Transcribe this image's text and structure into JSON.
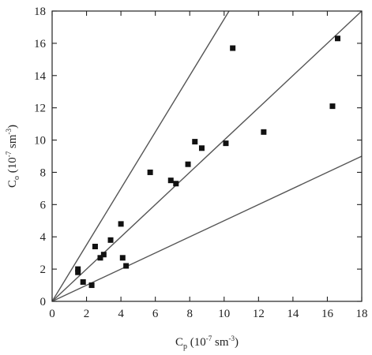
{
  "chart_data": {
    "type": "scatter",
    "title": "",
    "xlabel": {
      "main": "C",
      "subscript": "p",
      "unit_prefix": " (10",
      "exponent": "-7",
      "unit_suffix": " sm",
      "unit_exponent": "-3",
      "unit_close": ")"
    },
    "ylabel": {
      "main": "C",
      "subscript": "o",
      "unit_prefix": " (10",
      "exponent": "-7",
      "unit_suffix": " sm",
      "unit_exponent": "-3",
      "unit_close": ")"
    },
    "xlim": [
      0,
      18
    ],
    "ylim": [
      0,
      18
    ],
    "xticks": [
      0,
      2,
      4,
      6,
      8,
      10,
      12,
      14,
      16,
      18
    ],
    "yticks": [
      0,
      2,
      4,
      6,
      8,
      10,
      12,
      14,
      16,
      18
    ],
    "xtick_labels": [
      "0",
      "2",
      "4",
      "6",
      "8",
      "10",
      "12",
      "14",
      "16",
      "18"
    ],
    "ytick_labels": [
      "0",
      "2",
      "4",
      "6",
      "8",
      "10",
      "12",
      "14",
      "16",
      "18"
    ],
    "grid": false,
    "marker": "square",
    "colors": {
      "points": "#111111",
      "lines": "#555555",
      "axes": "#222222"
    },
    "reference_lines": [
      {
        "slope": 1.75
      },
      {
        "slope": 1.0
      },
      {
        "slope": 0.5
      }
    ],
    "points": [
      {
        "x": 1.5,
        "y": 2.0
      },
      {
        "x": 1.5,
        "y": 1.8
      },
      {
        "x": 1.8,
        "y": 1.2
      },
      {
        "x": 2.3,
        "y": 1.0
      },
      {
        "x": 2.5,
        "y": 3.4
      },
      {
        "x": 2.8,
        "y": 2.7
      },
      {
        "x": 3.0,
        "y": 2.9
      },
      {
        "x": 3.4,
        "y": 3.8
      },
      {
        "x": 4.0,
        "y": 4.8
      },
      {
        "x": 4.1,
        "y": 2.7
      },
      {
        "x": 4.3,
        "y": 2.2
      },
      {
        "x": 5.7,
        "y": 8.0
      },
      {
        "x": 6.9,
        "y": 7.5
      },
      {
        "x": 7.2,
        "y": 7.3
      },
      {
        "x": 7.9,
        "y": 8.5
      },
      {
        "x": 8.3,
        "y": 9.9
      },
      {
        "x": 8.7,
        "y": 9.5
      },
      {
        "x": 10.1,
        "y": 9.8
      },
      {
        "x": 10.5,
        "y": 15.7
      },
      {
        "x": 12.3,
        "y": 10.5
      },
      {
        "x": 16.3,
        "y": 12.1
      },
      {
        "x": 16.6,
        "y": 16.3
      }
    ]
  }
}
